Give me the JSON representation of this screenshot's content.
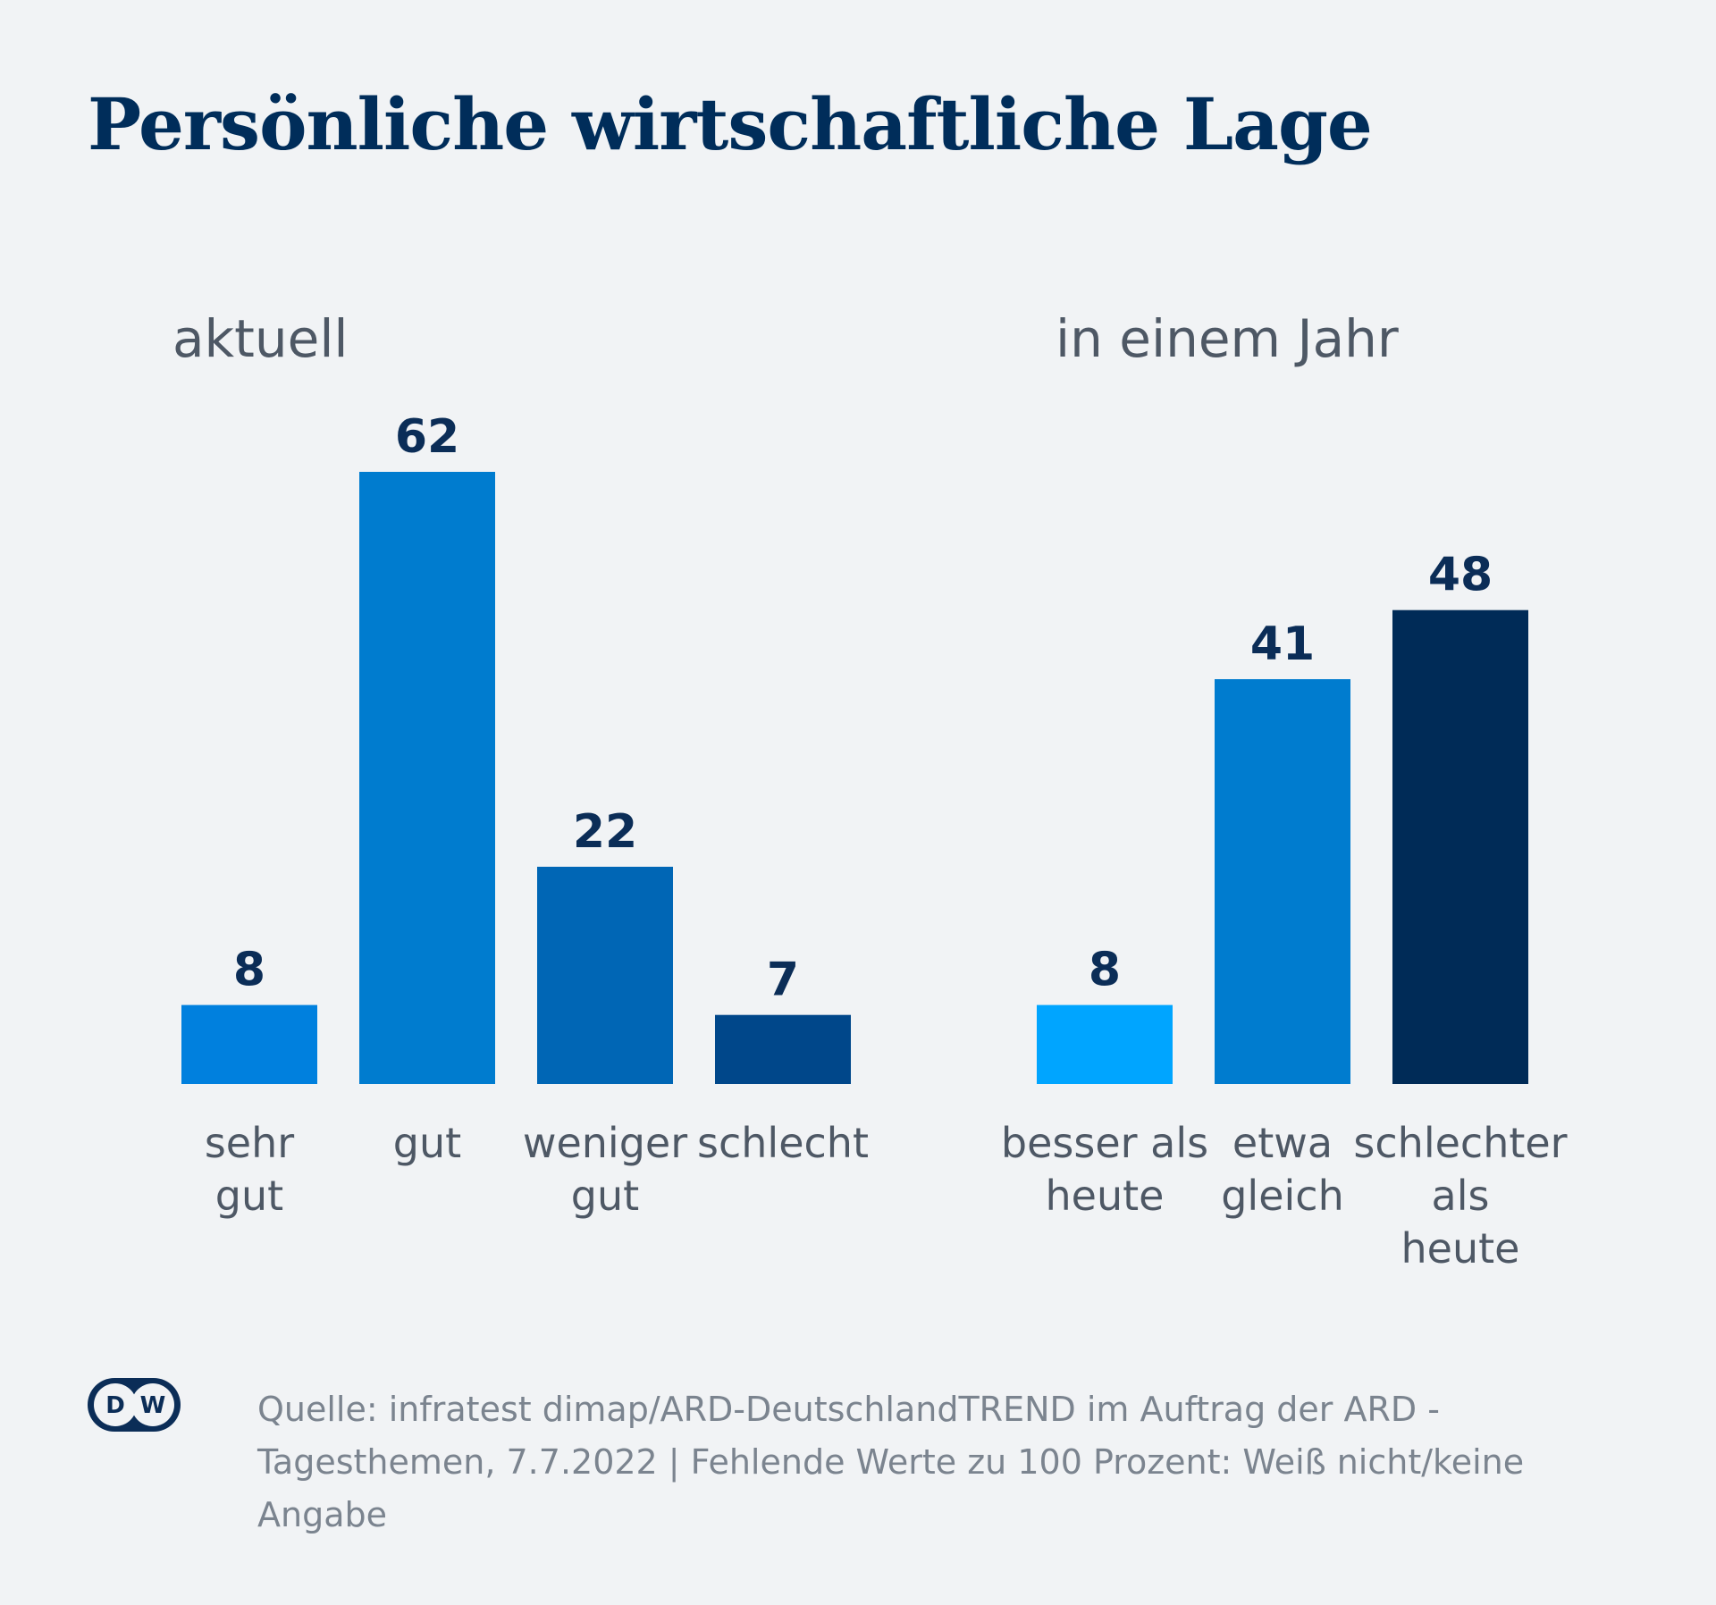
{
  "title": "Persönliche wirtschaftliche Lage",
  "source": "Quelle: infratest dimap/ARD-DeutschlandTREND im Auftrag der ARD - Tagesthemen, 7.7.2022 | Fehlende Werte zu 100 Prozent: Weiß nicht/keine Angabe",
  "logo": {
    "icon": "dw-logo-icon",
    "text": "DW"
  },
  "colors": {
    "background": "#f1f3f5",
    "title": "#002d5a",
    "value_label": "#0b2d57",
    "category_label": "#4e5865",
    "source": "#7b848f"
  },
  "chart_data": [
    {
      "type": "bar",
      "title": "aktuell",
      "categories": [
        [
          "sehr",
          "gut"
        ],
        [
          "gut"
        ],
        [
          "weniger",
          "gut"
        ],
        [
          "schlecht"
        ]
      ],
      "values": [
        8,
        62,
        22,
        7
      ],
      "colors": [
        "#0080de",
        "#007ccf",
        "#0066b5",
        "#00478a"
      ],
      "ylim": [
        0,
        62
      ],
      "xlabel": "",
      "ylabel": "",
      "grid": false
    },
    {
      "type": "bar",
      "title": "in einem Jahr",
      "categories": [
        [
          "besser als",
          "heute"
        ],
        [
          "etwa",
          "gleich"
        ],
        [
          "schlechter",
          "als",
          "heute"
        ]
      ],
      "values": [
        8,
        41,
        48
      ],
      "colors": [
        "#00a5ff",
        "#007ccf",
        "#002b57"
      ],
      "ylim": [
        0,
        62
      ],
      "xlabel": "",
      "ylabel": "",
      "grid": false
    }
  ]
}
